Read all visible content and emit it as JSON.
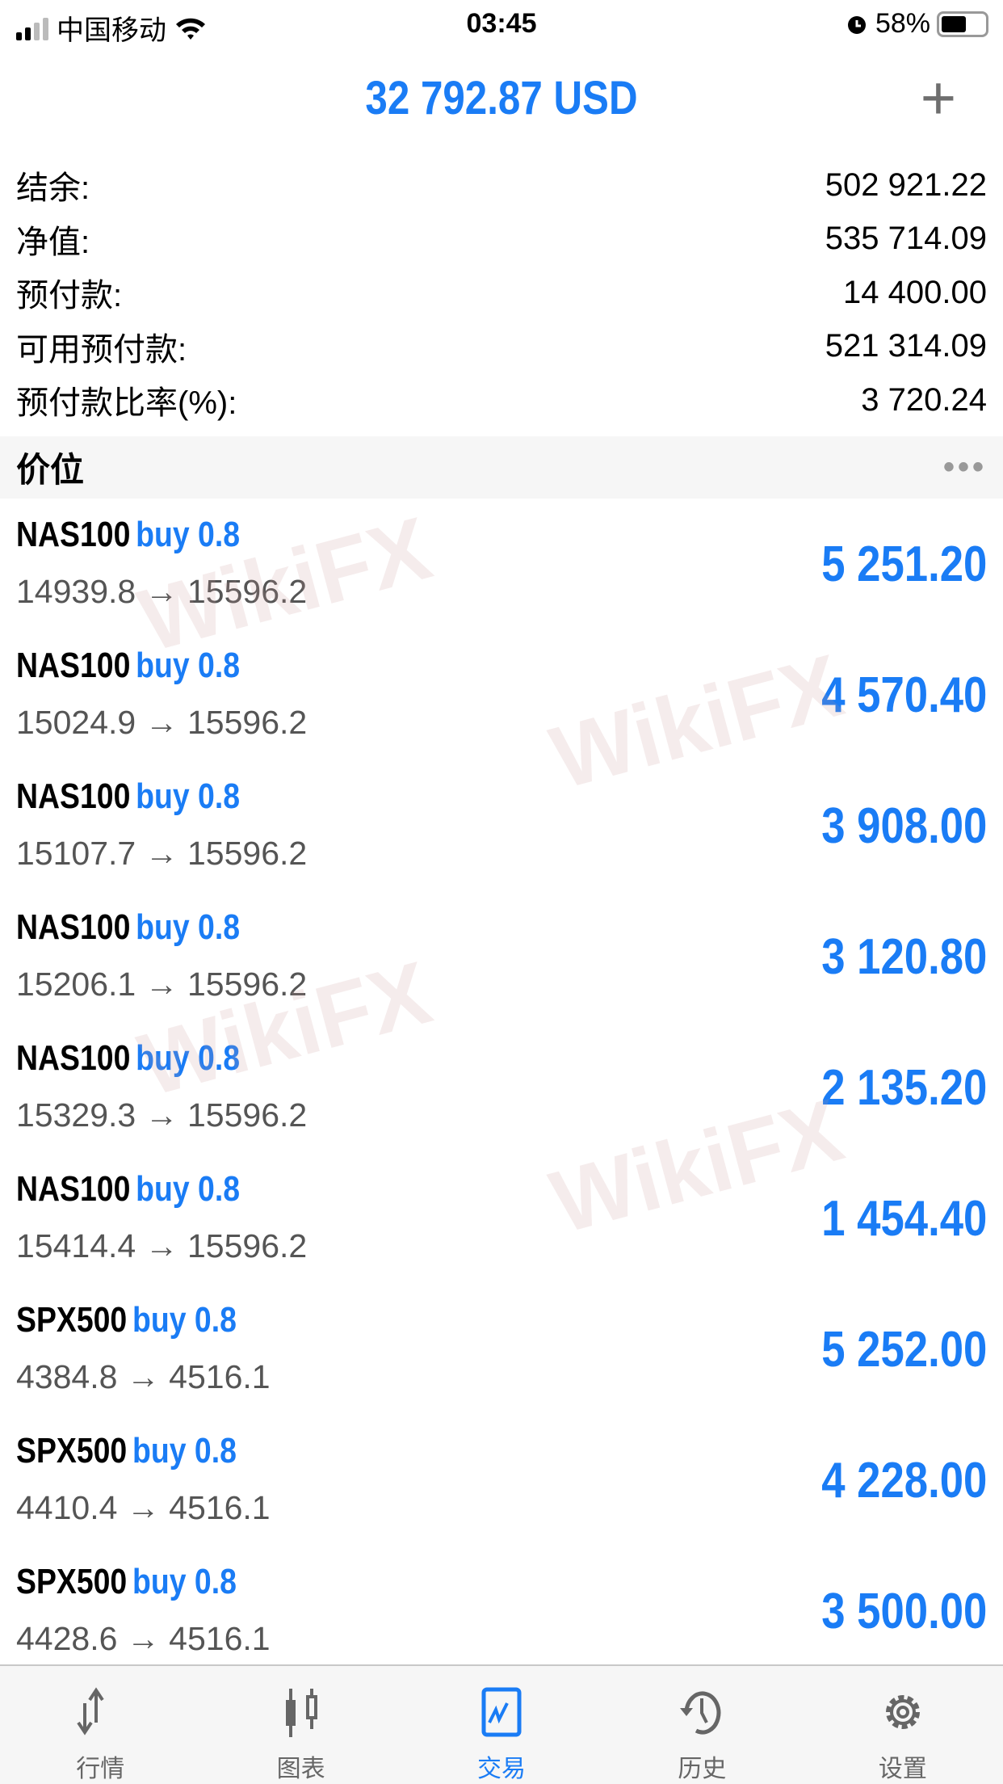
{
  "status_bar": {
    "carrier": "中国移动",
    "time": "03:45",
    "battery": "58%",
    "battery_level": 0.58
  },
  "header": {
    "title": "32 792.87 USD",
    "add_icon": "plus-icon"
  },
  "account": [
    {
      "label": "结余:",
      "value": "502 921.22"
    },
    {
      "label": "净值:",
      "value": "535 714.09"
    },
    {
      "label": "预付款:",
      "value": "14 400.00"
    },
    {
      "label": "可用预付款:",
      "value": "521 314.09"
    },
    {
      "label": "预付款比率(%):",
      "value": "3 720.24"
    }
  ],
  "section": {
    "title": "价位",
    "more": "•••"
  },
  "positions": [
    {
      "symbol": "NAS100",
      "side": "buy 0.8",
      "prices": "14939.8 → 15596.2",
      "profit": "5 251.20"
    },
    {
      "symbol": "NAS100",
      "side": "buy 0.8",
      "prices": "15024.9 → 15596.2",
      "profit": "4 570.40"
    },
    {
      "symbol": "NAS100",
      "side": "buy 0.8",
      "prices": "15107.7 → 15596.2",
      "profit": "3 908.00"
    },
    {
      "symbol": "NAS100",
      "side": "buy 0.8",
      "prices": "15206.1 → 15596.2",
      "profit": "3 120.80"
    },
    {
      "symbol": "NAS100",
      "side": "buy 0.8",
      "prices": "15329.3 → 15596.2",
      "profit": "2 135.20"
    },
    {
      "symbol": "NAS100",
      "side": "buy 0.8",
      "prices": "15414.4 → 15596.2",
      "profit": "1 454.40"
    },
    {
      "symbol": "SPX500",
      "side": "buy 0.8",
      "prices": "4384.8 → 4516.1",
      "profit": "5 252.00"
    },
    {
      "symbol": "SPX500",
      "side": "buy 0.8",
      "prices": "4410.4 → 4516.1",
      "profit": "4 228.00"
    },
    {
      "symbol": "SPX500",
      "side": "buy 0.8",
      "prices": "4428.6 → 4516.1",
      "profit": "3 500.00"
    }
  ],
  "watermark": "WikiFX",
  "tabs": [
    {
      "label": "行情"
    },
    {
      "label": "图表"
    },
    {
      "label": "交易",
      "active": true
    },
    {
      "label": "历史"
    },
    {
      "label": "设置"
    }
  ],
  "colors": {
    "accent": "#1a7cf5",
    "tabbar": "#f6f6f6"
  }
}
